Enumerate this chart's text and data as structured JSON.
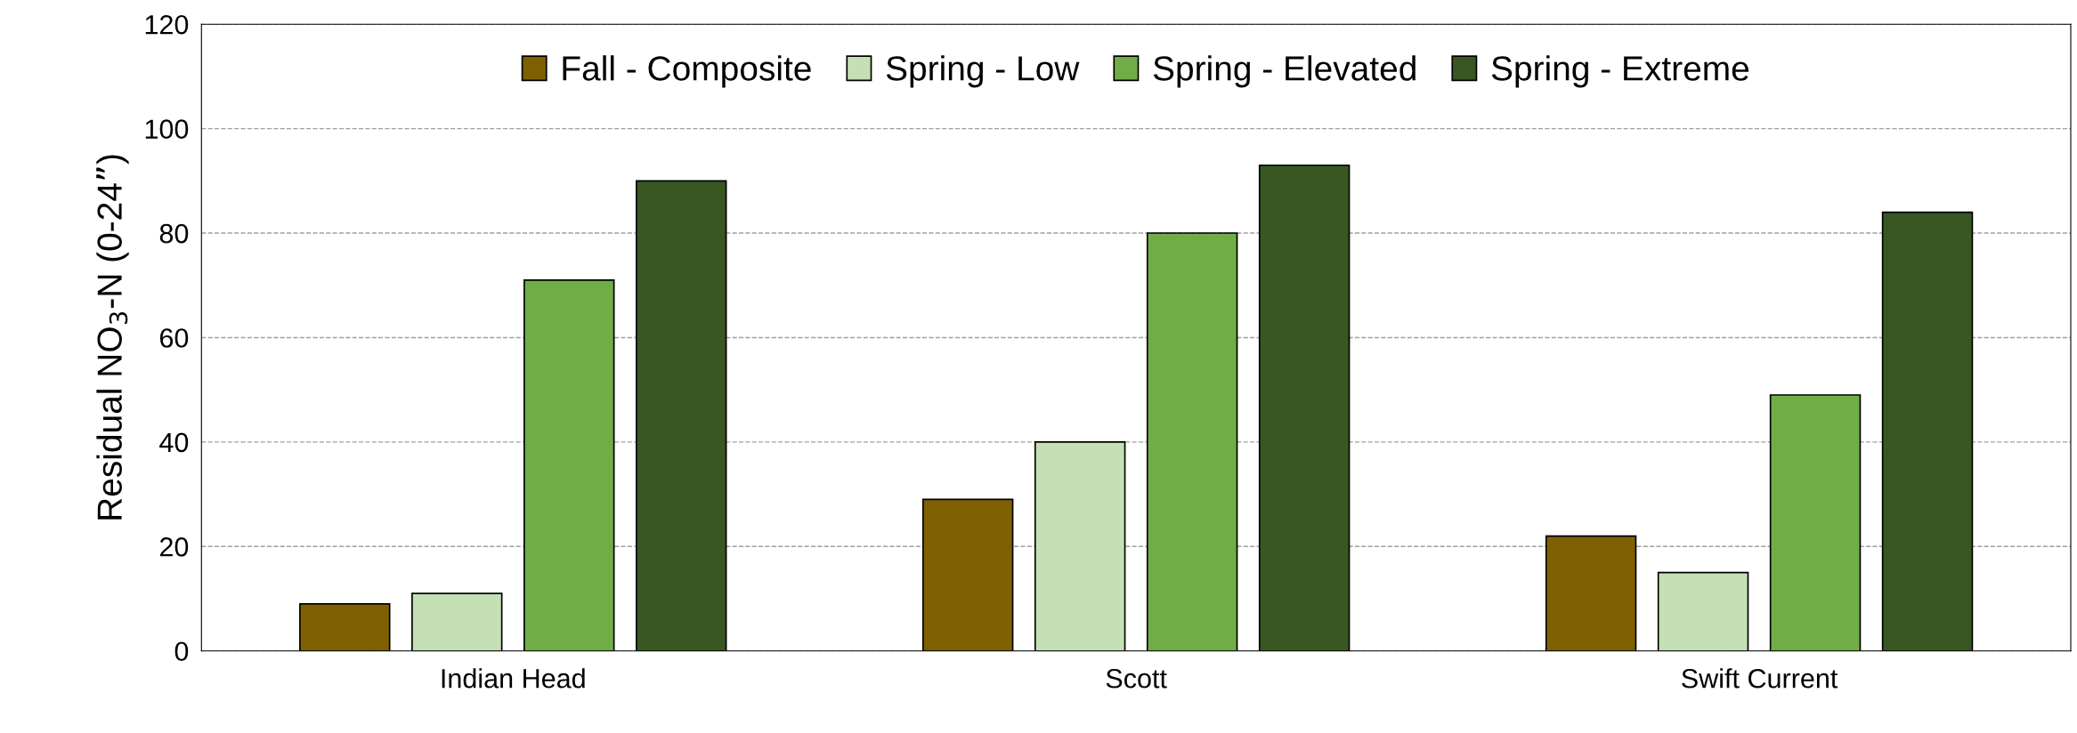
{
  "chart_data": {
    "type": "bar",
    "ylabel": "Residual NO$_{3}$-N (0-24”)",
    "categories": [
      "Indian Head",
      "Scott",
      "Swift Current"
    ],
    "series": [
      {
        "name": "Fall - Composite",
        "color": "#7f6000",
        "values": [
          9,
          29,
          22
        ]
      },
      {
        "name": "Spring - Low",
        "color": "#c5e0b4",
        "values": [
          11,
          40,
          15
        ]
      },
      {
        "name": "Spring - Elevated",
        "color": "#70ad47",
        "values": [
          71,
          80,
          49
        ]
      },
      {
        "name": "Spring - Extreme",
        "color": "#385723",
        "values": [
          90,
          93,
          84
        ]
      }
    ],
    "ylim": [
      0,
      120
    ],
    "yticks": [
      0,
      20,
      40,
      60,
      80,
      100,
      120
    ],
    "grid": "y",
    "legend": "top"
  }
}
